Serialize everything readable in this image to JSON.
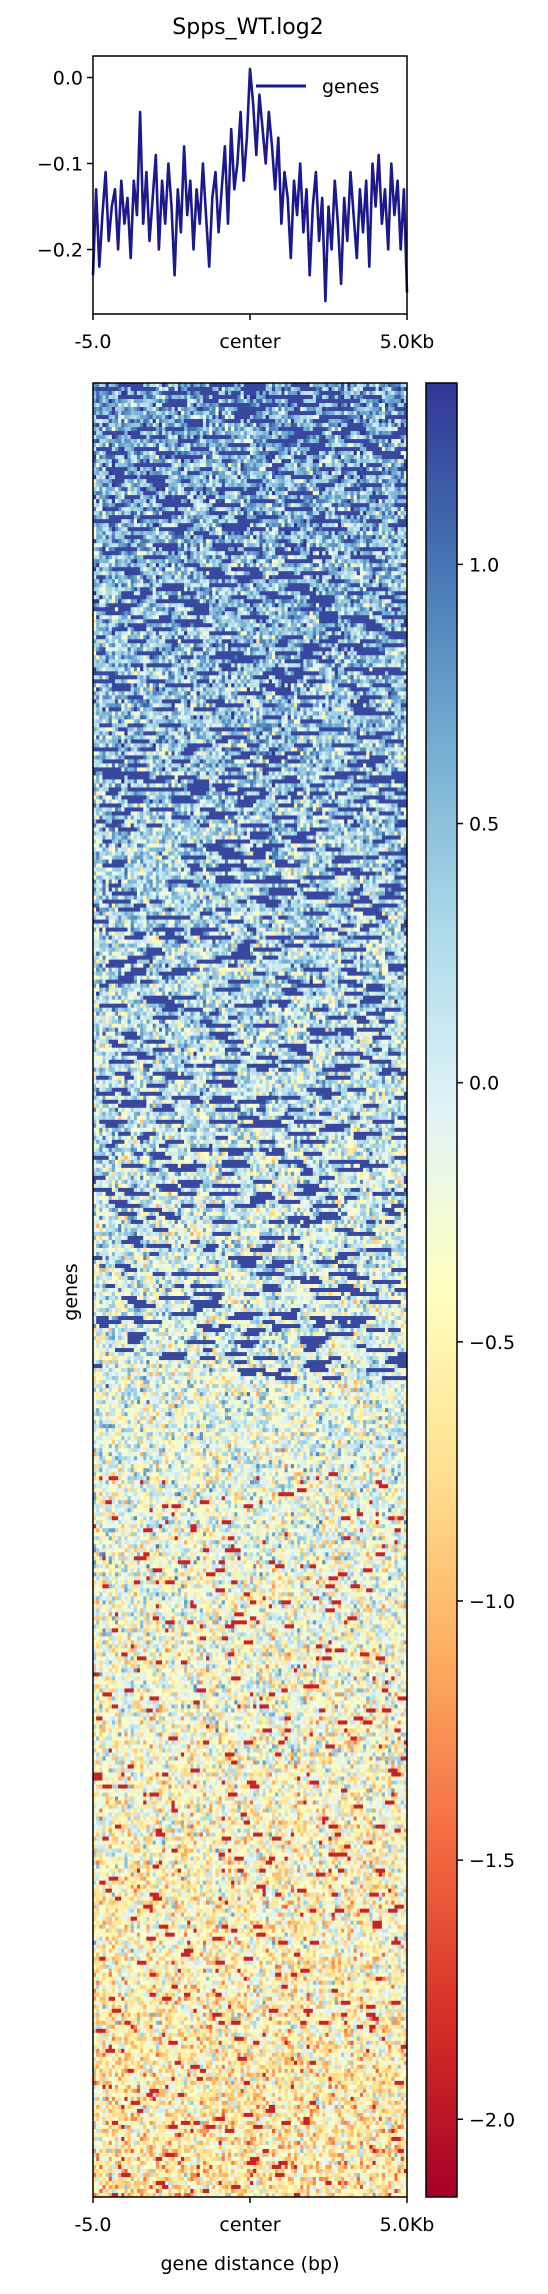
{
  "chart_data": [
    {
      "type": "line",
      "title": "Spps_WT.log2",
      "legend": {
        "entries": [
          "genes"
        ],
        "placement": "top-right"
      },
      "x_ticks": [
        "-5.0",
        "center",
        "5.0Kb"
      ],
      "y_ticks": [
        0.0,
        -0.1,
        -0.2
      ],
      "y_tick_labels": [
        "0.0",
        "−0.1",
        "−0.2"
      ],
      "ylim": [
        -0.275,
        0.025
      ],
      "grid": false,
      "series": [
        {
          "name": "genes",
          "color": "#1a1a8c",
          "x": [
            -5.0,
            -4.9,
            -4.8,
            -4.7,
            -4.6,
            -4.5,
            -4.4,
            -4.3,
            -4.2,
            -4.1,
            -4.0,
            -3.9,
            -3.8,
            -3.7,
            -3.6,
            -3.5,
            -3.4,
            -3.3,
            -3.2,
            -3.1,
            -3.0,
            -2.9,
            -2.8,
            -2.7,
            -2.6,
            -2.5,
            -2.4,
            -2.3,
            -2.2,
            -2.1,
            -2.0,
            -1.9,
            -1.8,
            -1.7,
            -1.6,
            -1.5,
            -1.4,
            -1.3,
            -1.2,
            -1.1,
            -1.0,
            -0.9,
            -0.8,
            -0.7,
            -0.6,
            -0.5,
            -0.4,
            -0.3,
            -0.2,
            -0.1,
            0.0,
            0.1,
            0.2,
            0.3,
            0.4,
            0.5,
            0.6,
            0.7,
            0.8,
            0.9,
            1.0,
            1.1,
            1.2,
            1.3,
            1.4,
            1.5,
            1.6,
            1.7,
            1.8,
            1.9,
            2.0,
            2.1,
            2.2,
            2.3,
            2.4,
            2.5,
            2.6,
            2.7,
            2.8,
            2.9,
            3.0,
            3.1,
            3.2,
            3.3,
            3.4,
            3.5,
            3.6,
            3.7,
            3.8,
            3.9,
            4.0,
            4.1,
            4.2,
            4.3,
            4.4,
            4.5,
            4.6,
            4.7,
            4.8,
            4.9,
            5.0
          ],
          "values": [
            -0.23,
            -0.13,
            -0.22,
            -0.16,
            -0.11,
            -0.19,
            -0.15,
            -0.13,
            -0.2,
            -0.12,
            -0.17,
            -0.14,
            -0.21,
            -0.12,
            -0.16,
            -0.04,
            -0.17,
            -0.11,
            -0.19,
            -0.14,
            -0.09,
            -0.2,
            -0.12,
            -0.17,
            -0.1,
            -0.15,
            -0.23,
            -0.13,
            -0.18,
            -0.08,
            -0.16,
            -0.12,
            -0.2,
            -0.13,
            -0.17,
            -0.1,
            -0.16,
            -0.22,
            -0.14,
            -0.11,
            -0.18,
            -0.13,
            -0.08,
            -0.17,
            -0.06,
            -0.13,
            -0.1,
            -0.04,
            -0.12,
            -0.07,
            0.01,
            -0.03,
            -0.09,
            -0.02,
            -0.06,
            -0.1,
            -0.04,
            -0.08,
            -0.13,
            -0.07,
            -0.17,
            -0.11,
            -0.14,
            -0.21,
            -0.12,
            -0.16,
            -0.1,
            -0.18,
            -0.13,
            -0.23,
            -0.15,
            -0.11,
            -0.19,
            -0.14,
            -0.26,
            -0.15,
            -0.2,
            -0.12,
            -0.17,
            -0.24,
            -0.14,
            -0.19,
            -0.11,
            -0.16,
            -0.21,
            -0.13,
            -0.18,
            -0.12,
            -0.22,
            -0.1,
            -0.15,
            -0.09,
            -0.17,
            -0.13,
            -0.2,
            -0.1,
            -0.16,
            -0.12,
            -0.2,
            -0.13,
            -0.25
          ]
        }
      ]
    },
    {
      "type": "heatmap",
      "xlabel": "gene distance (bp)",
      "ylabel": "genes",
      "x_ticks": [
        "-5.0",
        "center",
        "5.0Kb"
      ],
      "colormap": "RdYlBu",
      "colormap_colors": [
        "#a50026",
        "#d73027",
        "#f46d43",
        "#fdae61",
        "#fee090",
        "#ffffbf",
        "#e0f3f8",
        "#abd9e9",
        "#74add1",
        "#4575b4",
        "#313695"
      ],
      "value_range": [
        -2.15,
        1.35
      ],
      "colorbar_ticks": [
        1.0,
        0.5,
        0.0,
        -0.5,
        -1.0,
        -1.5,
        -2.0
      ],
      "colorbar_tick_labels": [
        "1.0",
        "0.5",
        "0.0",
        "−0.5",
        "−1.0",
        "−1.5",
        "−2.0"
      ],
      "pattern": "genes sorted top-to-bottom from mostly positive (blue) to mostly negative (red) values"
    }
  ]
}
